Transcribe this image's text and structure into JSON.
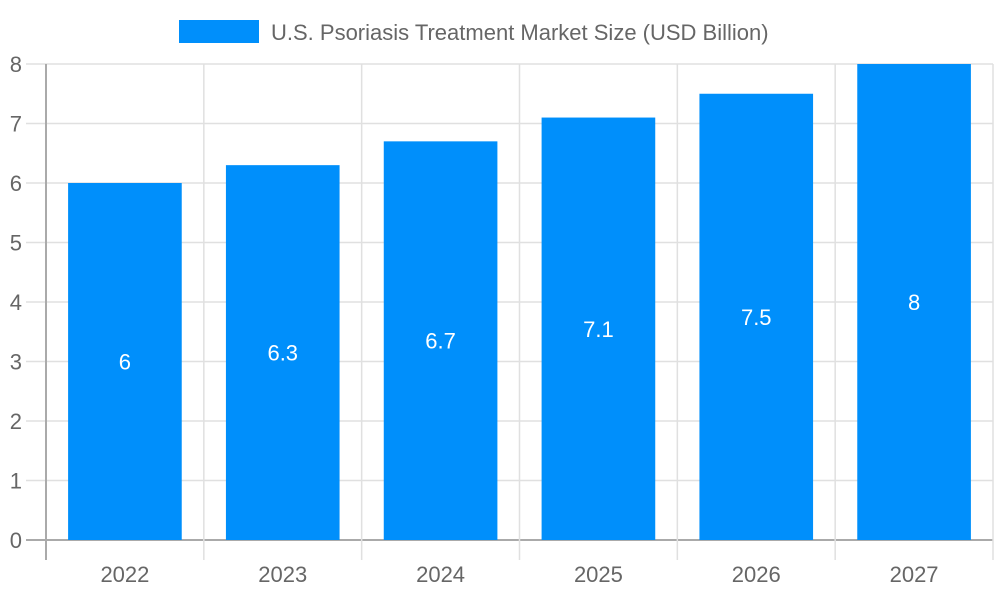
{
  "chart_data": {
    "type": "bar",
    "categories": [
      "2022",
      "2023",
      "2024",
      "2025",
      "2026",
      "2027"
    ],
    "series": [
      {
        "name": "U.S. Psoriasis Treatment Market Size (USD Billion)",
        "values": [
          6,
          6.3,
          6.7,
          7.1,
          7.5,
          8
        ],
        "color": "#008ffb"
      }
    ],
    "data_labels": [
      "6",
      "6.3",
      "6.7",
      "7.1",
      "7.5",
      "8"
    ],
    "ylim": [
      0,
      8
    ],
    "yticks": [
      "0",
      "1",
      "2",
      "3",
      "4",
      "5",
      "6",
      "7",
      "8"
    ],
    "xlabel": "",
    "ylabel": "",
    "grid": true,
    "legend_position": "top"
  }
}
